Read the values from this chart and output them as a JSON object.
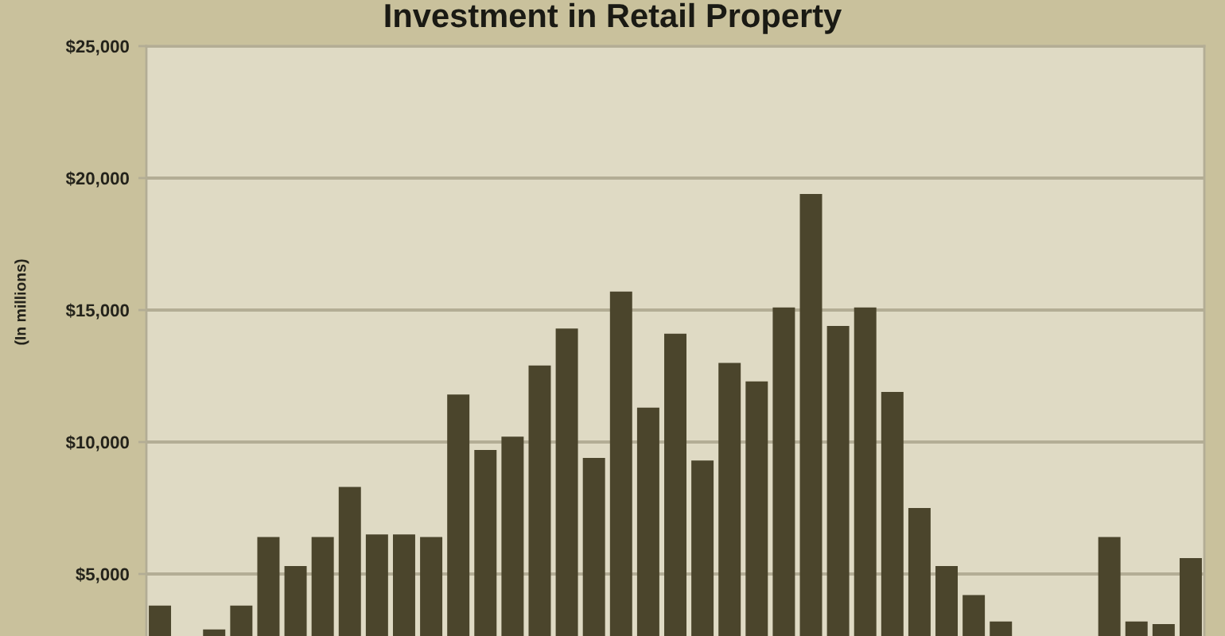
{
  "chart_data": {
    "type": "bar",
    "title": "Investment in Retail Property",
    "ylabel": "(In millions)",
    "categories": [
      null,
      null,
      null,
      null,
      null,
      null,
      null,
      null,
      null,
      null,
      null,
      null,
      null,
      null,
      null,
      null,
      null,
      null,
      null,
      null,
      null,
      null,
      null,
      null,
      null,
      null,
      null,
      null,
      null,
      null,
      null,
      null,
      null,
      null,
      null,
      null,
      null,
      null,
      null
    ],
    "values": [
      3800,
      null,
      2900,
      3800,
      6400,
      5300,
      6400,
      8300,
      6500,
      6500,
      6400,
      11800,
      9700,
      10200,
      12900,
      14300,
      9400,
      15700,
      11300,
      14100,
      9300,
      13000,
      12300,
      15100,
      19400,
      14400,
      15100,
      11900,
      7500,
      5300,
      4200,
      3200,
      null,
      null,
      null,
      6400,
      3200,
      3100,
      5600
    ],
    "color": "#4b452c",
    "ylim": [
      2650,
      25000
    ],
    "yticks": [
      {
        "value": 5000,
        "label": "$5,000"
      },
      {
        "value": 10000,
        "label": "$10,000"
      },
      {
        "value": 15000,
        "label": "$15,000"
      },
      {
        "value": 20000,
        "label": "$20,000"
      },
      {
        "value": 25000,
        "label": "$25,000"
      }
    ],
    "grid": "y",
    "tick_labels": "y"
  }
}
